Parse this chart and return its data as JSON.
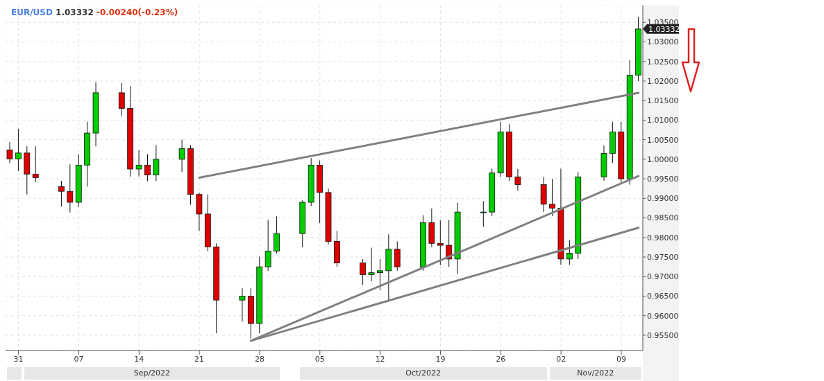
{
  "chart_data": {
    "type": "candlestick",
    "title": "EUR/USD 1.03332 -0.00240(-0.23%)",
    "x": [
      "2022-08-30",
      "2022-08-31",
      "2022-09-01",
      "2022-09-02",
      "2022-09-05",
      "2022-09-06",
      "2022-09-07",
      "2022-09-08",
      "2022-09-09",
      "2022-09-12",
      "2022-09-13",
      "2022-09-14",
      "2022-09-15",
      "2022-09-16",
      "2022-09-19",
      "2022-09-20",
      "2022-09-21",
      "2022-09-22",
      "2022-09-23",
      "2022-09-26",
      "2022-09-27",
      "2022-09-28",
      "2022-09-29",
      "2022-09-30",
      "2022-10-03",
      "2022-10-04",
      "2022-10-05",
      "2022-10-06",
      "2022-10-07",
      "2022-10-10",
      "2022-10-11",
      "2022-10-12",
      "2022-10-13",
      "2022-10-14",
      "2022-10-17",
      "2022-10-18",
      "2022-10-19",
      "2022-10-20",
      "2022-10-21",
      "2022-10-24",
      "2022-10-25",
      "2022-10-26",
      "2022-10-27",
      "2022-10-28",
      "2022-10-31",
      "2022-11-01",
      "2022-11-02",
      "2022-11-03",
      "2022-11-04",
      "2022-11-07",
      "2022-11-08",
      "2022-11-09",
      "2022-11-10",
      "2022-11-11"
    ],
    "ohlc": [
      [
        1.0024,
        1.0044,
        0.999,
        1.0001
      ],
      [
        1.0001,
        1.0078,
        0.997,
        1.0016
      ],
      [
        1.0016,
        1.0033,
        0.991,
        0.9962
      ],
      [
        0.9962,
        1.0033,
        0.9941,
        0.9953
      ],
      [
        0.993,
        0.9945,
        0.9879,
        0.9918
      ],
      [
        0.9918,
        0.9987,
        0.9864,
        0.989
      ],
      [
        0.989,
        1.0013,
        0.9878,
        0.9985
      ],
      [
        0.9985,
        1.0096,
        0.993,
        1.0067
      ],
      [
        1.0067,
        1.0197,
        1.0033,
        1.017
      ],
      [
        1.017,
        1.0195,
        1.011,
        1.013
      ],
      [
        1.013,
        1.0187,
        0.9956,
        0.9975
      ],
      [
        0.9975,
        1.0024,
        0.9956,
        0.9985
      ],
      [
        0.9985,
        1.0013,
        0.9944,
        0.996
      ],
      [
        0.996,
        1.0036,
        0.9944,
        1.0
      ],
      [
        1.0,
        1.005,
        0.9967,
        1.0027
      ],
      [
        1.0027,
        1.0036,
        0.9884,
        0.991
      ],
      [
        0.991,
        0.9915,
        0.9816,
        0.986
      ],
      [
        0.986,
        0.991,
        0.9765,
        0.9776
      ],
      [
        0.9776,
        0.9785,
        0.9555,
        0.964
      ],
      [
        0.964,
        0.967,
        0.9585,
        0.965
      ],
      [
        0.965,
        0.967,
        0.9542,
        0.958
      ],
      [
        0.958,
        0.9751,
        0.9555,
        0.9725
      ],
      [
        0.9725,
        0.9845,
        0.9715,
        0.9765
      ],
      [
        0.9765,
        0.9854,
        0.9759,
        0.981
      ],
      [
        0.981,
        0.9895,
        0.9775,
        0.989
      ],
      [
        0.989,
        1.0003,
        0.988,
        0.9985
      ],
      [
        0.9985,
        0.9997,
        0.9837,
        0.9915
      ],
      [
        0.9915,
        0.9925,
        0.9782,
        0.979
      ],
      [
        0.979,
        0.9817,
        0.9725,
        0.9735
      ],
      [
        0.9735,
        0.9745,
        0.9679,
        0.9705
      ],
      [
        0.9705,
        0.9774,
        0.9688,
        0.971
      ],
      [
        0.971,
        0.9745,
        0.9665,
        0.9715
      ],
      [
        0.9715,
        0.9808,
        0.9636,
        0.977
      ],
      [
        0.977,
        0.979,
        0.9715,
        0.9725
      ],
      [
        0.9725,
        0.9857,
        0.9715,
        0.9838
      ],
      [
        0.9838,
        0.9874,
        0.9775,
        0.9785
      ],
      [
        0.9785,
        0.9844,
        0.9729,
        0.978
      ],
      [
        0.978,
        0.9844,
        0.9725,
        0.9745
      ],
      [
        0.9745,
        0.9889,
        0.9707,
        0.9865
      ],
      [
        0.9865,
        0.9893,
        0.9827,
        0.9865
      ],
      [
        0.9865,
        0.9976,
        0.9855,
        0.9965
      ],
      [
        0.9965,
        1.0096,
        0.9955,
        1.007
      ],
      [
        1.007,
        1.009,
        0.9945,
        0.9955
      ],
      [
        0.9955,
        0.9975,
        0.992,
        0.9935
      ],
      [
        0.9935,
        0.9955,
        0.9865,
        0.9885
      ],
      [
        0.9885,
        0.995,
        0.9855,
        0.9875
      ],
      [
        0.9875,
        0.9976,
        0.973,
        0.9745
      ],
      [
        0.9745,
        0.9794,
        0.973,
        0.976
      ],
      [
        0.976,
        0.9967,
        0.9745,
        0.9955
      ],
      [
        0.9955,
        1.0035,
        0.9945,
        1.0015
      ],
      [
        1.0015,
        1.0096,
        0.999,
        1.007
      ],
      [
        1.007,
        1.0096,
        0.9939,
        0.995
      ],
      [
        0.995,
        1.0253,
        0.9935,
        1.0215
      ],
      [
        1.0215,
        1.0364,
        1.02,
        1.0333
      ]
    ],
    "colors": [
      "#dd0000",
      "#00cc00",
      "#dd0000",
      "#dd0000",
      "#dd0000",
      "#dd0000",
      "#00cc00",
      "#00cc00",
      "#00cc00",
      "#dd0000",
      "#dd0000",
      "#00cc00",
      "#dd0000",
      "#00cc00",
      "#00cc00",
      "#dd0000",
      "#dd0000",
      "#dd0000",
      "#dd0000",
      "#00cc00",
      "#dd0000",
      "#00cc00",
      "#00cc00",
      "#00cc00",
      "#00cc00",
      "#00cc00",
      "#dd0000",
      "#dd0000",
      "#dd0000",
      "#dd0000",
      "#00cc00",
      "#00cc00",
      "#00cc00",
      "#dd0000",
      "#00cc00",
      "#dd0000",
      "#dd0000",
      "#dd0000",
      "#00cc00",
      "#00cc00",
      "#00cc00",
      "#00cc00",
      "#dd0000",
      "#dd0000",
      "#dd0000",
      "#dd0000",
      "#dd0000",
      "#00cc00",
      "#00cc00",
      "#00cc00",
      "#00cc00",
      "#dd0000",
      "#00cc00",
      "#00cc00"
    ],
    "series": [
      {
        "type": "line",
        "color": "#808080",
        "x": [
          "2022-09-21",
          "2022-11-11"
        ],
        "values": [
          0.9953,
          1.017
        ]
      },
      {
        "type": "line",
        "color": "#808080",
        "x": [
          "2022-09-27",
          "2022-11-11"
        ],
        "values": [
          0.9536,
          0.9957
        ]
      },
      {
        "type": "line",
        "color": "#808080",
        "x": [
          "2022-09-27",
          "2022-11-11"
        ],
        "values": [
          0.9536,
          0.9825
        ]
      }
    ],
    "xlim": [
      "2022-08-29T12:00",
      "2022-11-11T12:00"
    ],
    "xticks": [
      {
        "value": "2022-08-31",
        "label": "31"
      },
      {
        "value": "2022-09-07",
        "label": "07"
      },
      {
        "value": "2022-09-14",
        "label": "14"
      },
      {
        "value": "2022-09-21",
        "label": "21"
      },
      {
        "value": "2022-09-28",
        "label": "28"
      },
      {
        "value": "2022-10-05",
        "label": "05"
      },
      {
        "value": "2022-10-12",
        "label": "12"
      },
      {
        "value": "2022-10-19",
        "label": "19"
      },
      {
        "value": "2022-10-26",
        "label": "26"
      },
      {
        "value": "2022-11-02",
        "label": "02"
      },
      {
        "value": "2022-11-09",
        "label": "09"
      }
    ],
    "ylim": [
      0.9511,
      1.0393
    ],
    "yticks": [
      {
        "value": 0.955,
        "label": "0.95500"
      },
      {
        "value": 0.96,
        "label": "0.96000"
      },
      {
        "value": 0.965,
        "label": "0.96500"
      },
      {
        "value": 0.97,
        "label": "0.97000"
      },
      {
        "value": 0.975,
        "label": "0.97500"
      },
      {
        "value": 0.98,
        "label": "0.98000"
      },
      {
        "value": 0.985,
        "label": "0.98500"
      },
      {
        "value": 0.99,
        "label": "0.99000"
      },
      {
        "value": 0.995,
        "label": "0.99500"
      },
      {
        "value": 1.0,
        "label": "1.00000"
      },
      {
        "value": 1.005,
        "label": "1.00500"
      },
      {
        "value": 1.01,
        "label": "1.01000"
      },
      {
        "value": 1.015,
        "label": "1.01500"
      },
      {
        "value": 1.02,
        "label": "1.02000"
      },
      {
        "value": 1.025,
        "label": "1.02500"
      },
      {
        "value": 1.03,
        "label": "1.03000"
      },
      {
        "value": 1.035,
        "label": "1.03500"
      }
    ],
    "ref_lines": [
      {
        "axis": "y",
        "value": 1.03332,
        "label": "1.03332"
      }
    ],
    "annotations": [
      "Sep/2022",
      "Oct/2022",
      "Nov/2022"
    ],
    "grid": true
  }
}
